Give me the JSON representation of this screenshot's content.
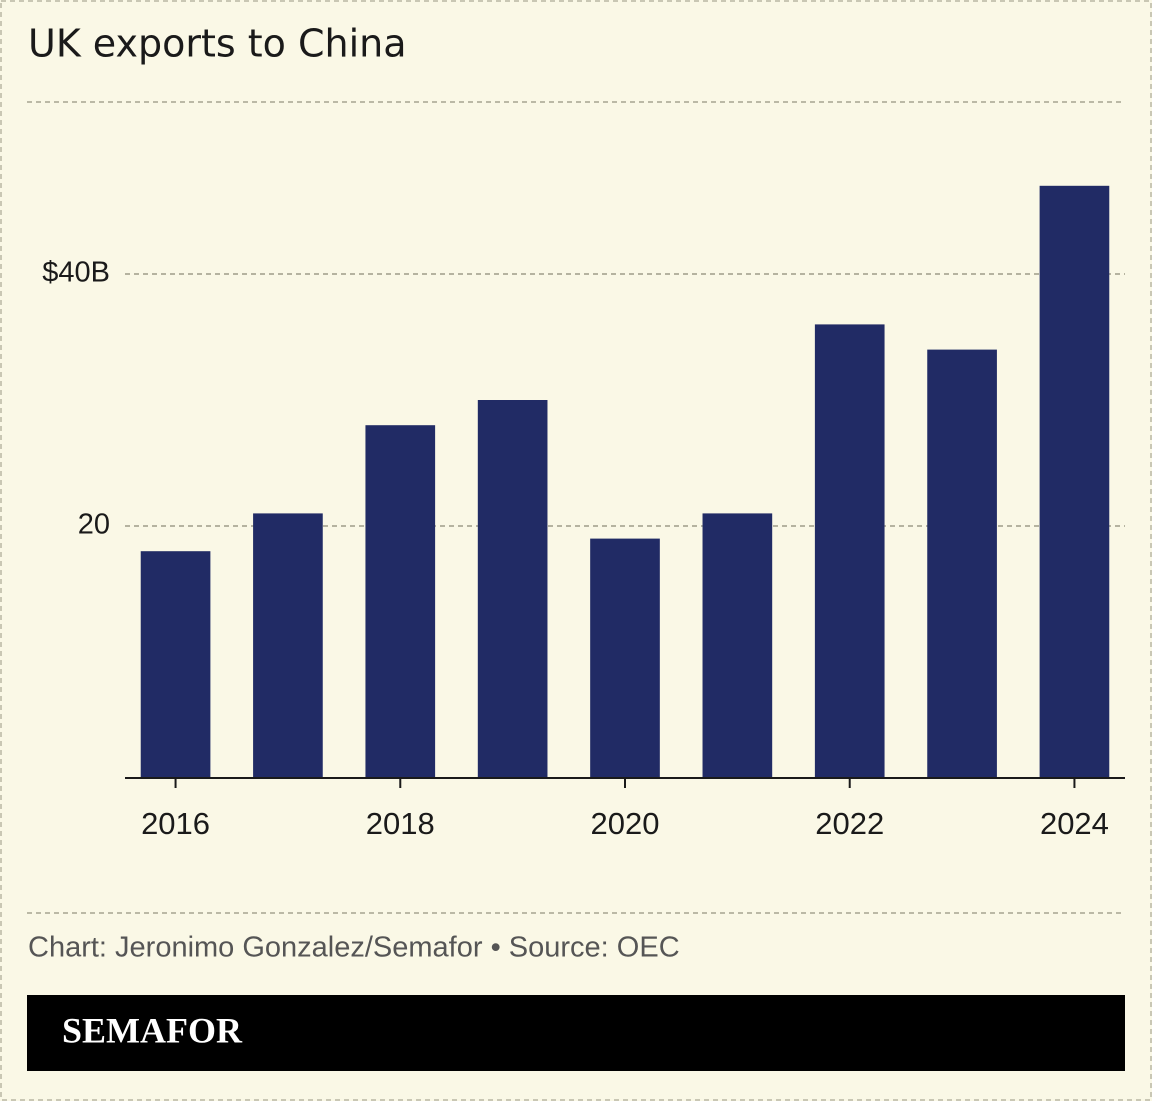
{
  "chart_data": {
    "type": "bar",
    "title": "UK exports to China",
    "x": [
      2016,
      2017,
      2018,
      2019,
      2020,
      2021,
      2022,
      2023,
      2024
    ],
    "values": [
      18,
      21,
      28,
      30,
      19,
      21,
      36,
      34,
      47
    ],
    "color": "#212b65",
    "xlim": [
      2015.55,
      2024.45
    ],
    "xticks": [
      2016,
      2018,
      2020,
      2022,
      2024
    ],
    "ylim": [
      0,
      50
    ],
    "yticks": [
      20,
      {
        "value": 40,
        "label": "$40B"
      }
    ],
    "grid": true,
    "source": "Chart: Jeronimo Gonzalez/Semafor • Source: OEC",
    "logo": "SEMAFOR"
  }
}
